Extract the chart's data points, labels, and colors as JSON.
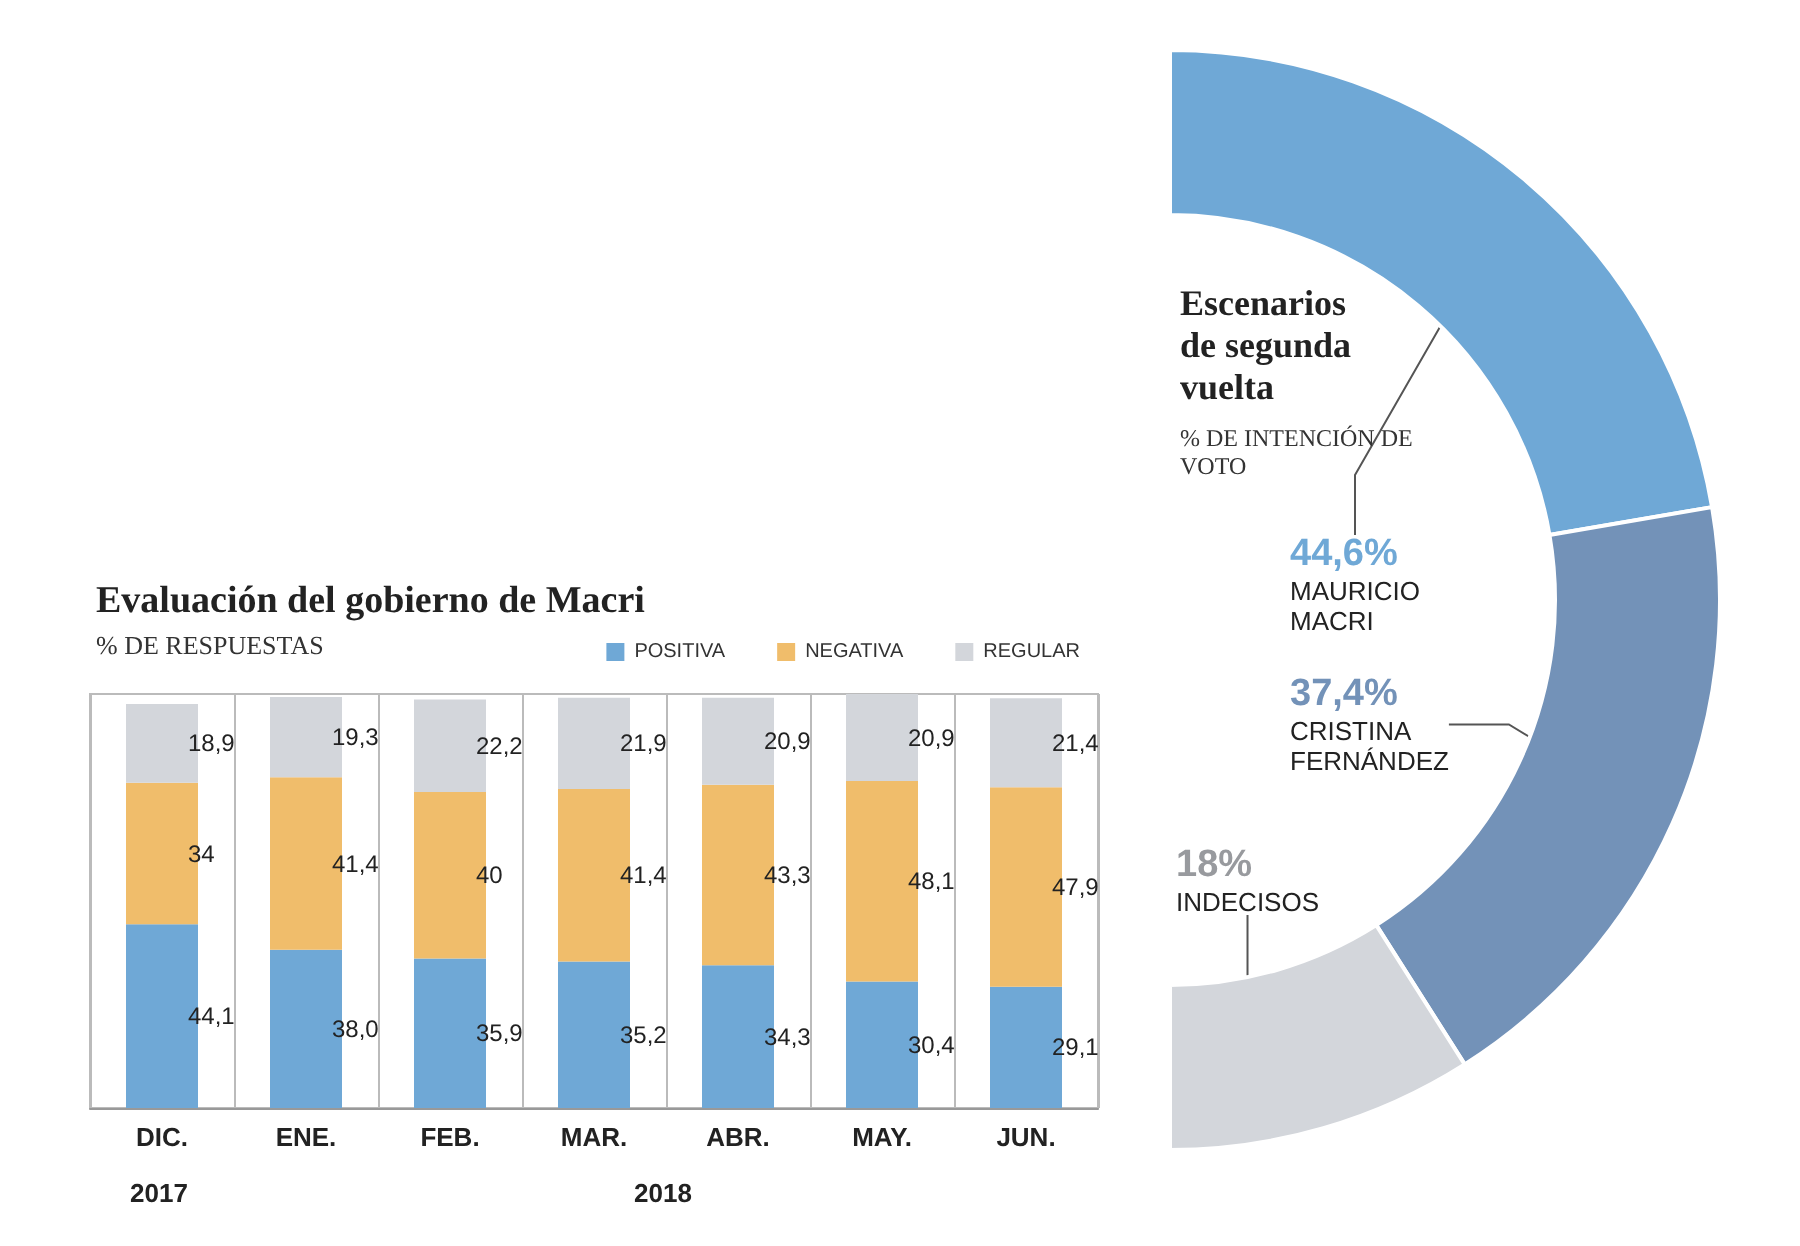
{
  "chart_data": [
    {
      "type": "bar",
      "title": "Evaluación del gobierno de Macri",
      "subtitle": "% DE RESPUESTAS",
      "stacked": true,
      "categories": [
        "DIC.",
        "ENE.",
        "FEB.",
        "MAR.",
        "ABR.",
        "MAY.",
        "JUN."
      ],
      "series": [
        {
          "name": "POSITIVA",
          "color": "#6fa8d6",
          "values": [
            44.1,
            38.0,
            35.9,
            35.2,
            34.3,
            30.4,
            29.1
          ],
          "value_labels": [
            "44,1",
            "38,0",
            "35,9",
            "35,2",
            "34,3",
            "30,4",
            "29,1"
          ]
        },
        {
          "name": "NEGATIVA",
          "color": "#f0bd6b",
          "values": [
            34,
            41.4,
            40,
            41.4,
            43.3,
            48.1,
            47.9
          ],
          "value_labels": [
            "34",
            "41,4",
            "40",
            "41,4",
            "43,3",
            "48,1",
            "47,9"
          ]
        },
        {
          "name": "REGULAR",
          "color": "#d3d6db",
          "values": [
            18.9,
            19.3,
            22.2,
            21.9,
            20.9,
            20.9,
            21.4
          ],
          "value_labels": [
            "18,9",
            "19,3",
            "22,2",
            "21,9",
            "20,9",
            "20,9",
            "21,4"
          ]
        }
      ],
      "annotations": [
        "2017",
        "2018"
      ],
      "legend": "top right",
      "grid": "x"
    },
    {
      "type": "donut",
      "title": "Escenarios de segunda vuelta",
      "subtitle": "% DE INTENCIÓN DE VOTO",
      "categories": [
        "MAURICIO MACRI",
        "CRISTINA FERNÁNDEZ",
        "INDECISOS"
      ],
      "values": [
        44.6,
        37.4,
        18
      ],
      "value_labels": [
        "44,6%",
        "37,4%",
        "18%"
      ],
      "colors": [
        "#6fa8d6",
        "#7392b8",
        "#d3d6db"
      ]
    }
  ]
}
